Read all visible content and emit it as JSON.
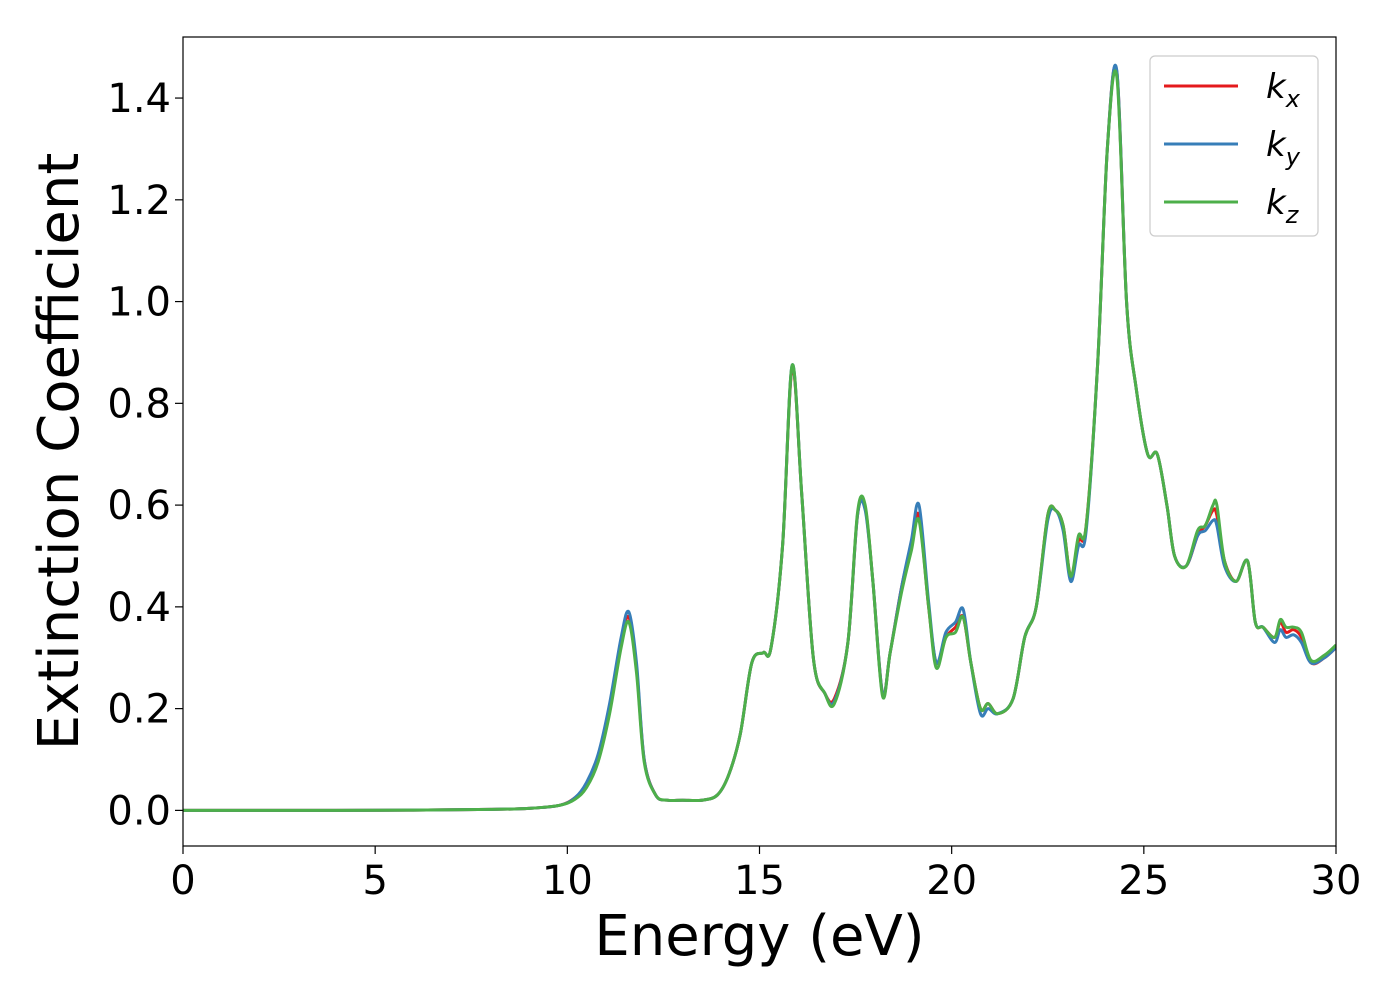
{
  "chart_data": {
    "type": "line",
    "title": "",
    "xlabel": "Energy (eV)",
    "ylabel": "Extinction Coefficient",
    "xlim": [
      0,
      30
    ],
    "ylim": [
      -0.07,
      1.52
    ],
    "xticks": [
      0,
      5,
      10,
      15,
      20,
      25,
      30
    ],
    "xtick_labels": [
      "0",
      "5",
      "10",
      "15",
      "20",
      "25",
      "30"
    ],
    "yticks": [
      0.0,
      0.2,
      0.4,
      0.6,
      0.8,
      1.0,
      1.2,
      1.4
    ],
    "ytick_labels": [
      "0.0",
      "0.2",
      "0.4",
      "0.6",
      "0.8",
      "1.0",
      "1.2",
      "1.4"
    ],
    "grid": false,
    "legend_position": "top-right",
    "x": [
      0,
      2,
      4,
      6,
      8,
      9,
      9.8,
      10.2,
      10.5,
      10.8,
      11.1,
      11.4,
      11.6,
      11.8,
      12.0,
      12.3,
      12.6,
      13.0,
      13.5,
      13.9,
      14.2,
      14.5,
      14.8,
      15.1,
      15.3,
      15.6,
      15.85,
      16.1,
      16.4,
      16.7,
      16.95,
      17.3,
      17.55,
      17.75,
      17.95,
      18.2,
      18.4,
      18.7,
      18.95,
      19.15,
      19.4,
      19.6,
      19.85,
      20.1,
      20.3,
      20.5,
      20.75,
      20.95,
      21.2,
      21.6,
      21.9,
      22.2,
      22.5,
      22.7,
      22.9,
      23.1,
      23.3,
      23.5,
      23.8,
      24.05,
      24.3,
      24.55,
      24.8,
      25.1,
      25.35,
      25.6,
      25.8,
      26.1,
      26.4,
      26.6,
      26.8,
      26.9,
      27.1,
      27.4,
      27.7,
      27.9,
      28.1,
      28.4,
      28.55,
      28.7,
      28.9,
      29.1,
      29.35,
      29.7,
      30
    ],
    "series": [
      {
        "name": "k_x",
        "label_main": "k",
        "label_sub": "x",
        "color": "#e41a1c",
        "values": [
          0.0,
          0.0,
          0.0,
          0.0005,
          0.002,
          0.004,
          0.01,
          0.025,
          0.05,
          0.1,
          0.2,
          0.33,
          0.38,
          0.28,
          0.1,
          0.03,
          0.02,
          0.02,
          0.02,
          0.03,
          0.07,
          0.15,
          0.29,
          0.31,
          0.32,
          0.52,
          0.87,
          0.62,
          0.3,
          0.23,
          0.22,
          0.33,
          0.58,
          0.595,
          0.45,
          0.23,
          0.31,
          0.44,
          0.52,
          0.58,
          0.4,
          0.29,
          0.34,
          0.36,
          0.38,
          0.29,
          0.2,
          0.21,
          0.19,
          0.22,
          0.34,
          0.4,
          0.58,
          0.59,
          0.56,
          0.46,
          0.53,
          0.56,
          0.88,
          1.3,
          1.45,
          1.0,
          0.83,
          0.7,
          0.7,
          0.6,
          0.5,
          0.48,
          0.54,
          0.56,
          0.59,
          0.58,
          0.49,
          0.45,
          0.49,
          0.37,
          0.36,
          0.34,
          0.37,
          0.35,
          0.355,
          0.34,
          0.29,
          0.3,
          0.32
        ]
      },
      {
        "name": "k_y",
        "label_main": "k",
        "label_sub": "y",
        "color": "#377eb8",
        "values": [
          0.0,
          0.0,
          0.0,
          0.0005,
          0.002,
          0.004,
          0.01,
          0.025,
          0.055,
          0.11,
          0.21,
          0.34,
          0.39,
          0.29,
          0.1,
          0.03,
          0.02,
          0.02,
          0.02,
          0.03,
          0.07,
          0.15,
          0.29,
          0.31,
          0.32,
          0.52,
          0.875,
          0.62,
          0.3,
          0.23,
          0.215,
          0.33,
          0.58,
          0.59,
          0.45,
          0.23,
          0.31,
          0.44,
          0.53,
          0.6,
          0.41,
          0.29,
          0.35,
          0.37,
          0.395,
          0.29,
          0.19,
          0.2,
          0.19,
          0.22,
          0.34,
          0.4,
          0.57,
          0.59,
          0.55,
          0.45,
          0.52,
          0.55,
          0.88,
          1.3,
          1.452,
          1.0,
          0.83,
          0.7,
          0.7,
          0.6,
          0.5,
          0.48,
          0.54,
          0.55,
          0.57,
          0.56,
          0.48,
          0.45,
          0.49,
          0.37,
          0.36,
          0.33,
          0.355,
          0.34,
          0.345,
          0.33,
          0.29,
          0.3,
          0.32
        ]
      },
      {
        "name": "k_z",
        "label_main": "k",
        "label_sub": "z",
        "color": "#4daf4a",
        "values": [
          0.0,
          0.0,
          0.0,
          0.0005,
          0.002,
          0.004,
          0.01,
          0.022,
          0.045,
          0.095,
          0.19,
          0.32,
          0.37,
          0.27,
          0.095,
          0.03,
          0.02,
          0.02,
          0.02,
          0.03,
          0.07,
          0.15,
          0.29,
          0.31,
          0.32,
          0.52,
          0.875,
          0.62,
          0.3,
          0.23,
          0.21,
          0.33,
          0.585,
          0.6,
          0.45,
          0.225,
          0.31,
          0.43,
          0.51,
          0.57,
          0.4,
          0.28,
          0.34,
          0.35,
          0.38,
          0.29,
          0.2,
          0.21,
          0.19,
          0.22,
          0.34,
          0.4,
          0.58,
          0.59,
          0.56,
          0.46,
          0.54,
          0.56,
          0.88,
          1.3,
          1.44,
          1.0,
          0.83,
          0.7,
          0.7,
          0.6,
          0.5,
          0.48,
          0.55,
          0.56,
          0.6,
          0.6,
          0.49,
          0.45,
          0.49,
          0.37,
          0.36,
          0.34,
          0.375,
          0.36,
          0.36,
          0.35,
          0.295,
          0.305,
          0.325
        ]
      }
    ]
  }
}
